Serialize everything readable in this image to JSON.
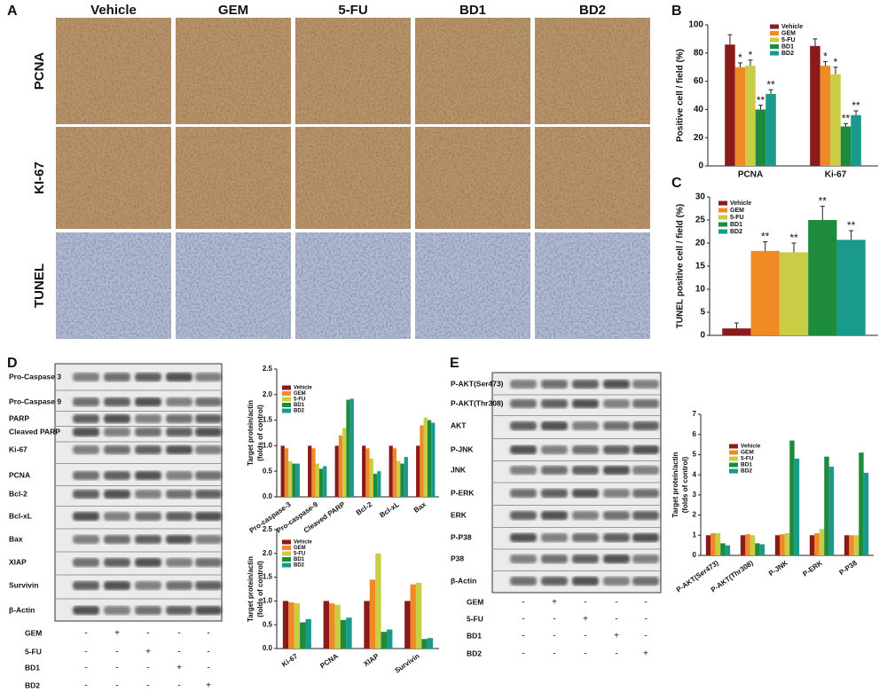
{
  "panel_labels": [
    "A",
    "B",
    "C",
    "D",
    "E"
  ],
  "panel_a": {
    "columns": [
      "Vehicle",
      "GEM",
      "5-FU",
      "BD1",
      "BD2"
    ],
    "rows": [
      "PCNA",
      "KI-67",
      "TUNEL"
    ]
  },
  "chart_data": [
    {
      "type": "bar",
      "ylabel": "Positive cell / field (%)",
      "categories": [
        "PCNA",
        "Ki-67"
      ],
      "ylim": [
        0,
        100
      ],
      "yticks": [
        0,
        20,
        40,
        60,
        80,
        100
      ],
      "series": [
        {
          "name": "Vehicle",
          "color": "#8b1a1a",
          "values": [
            86,
            85
          ],
          "errors": [
            7,
            5
          ]
        },
        {
          "name": "GEM",
          "color": "#f08a24",
          "values": [
            70,
            71
          ],
          "errors": [
            3,
            3
          ],
          "annotations": [
            "*",
            "*"
          ]
        },
        {
          "name": "5-FU",
          "color": "#c9cc44",
          "values": [
            71,
            65
          ],
          "errors": [
            4,
            5
          ],
          "annotations": [
            "*",
            "*"
          ]
        },
        {
          "name": "BD1",
          "color": "#1e8a3c",
          "values": [
            40,
            28
          ],
          "errors": [
            3,
            2
          ],
          "annotations": [
            "**",
            "**"
          ]
        },
        {
          "name": "BD2",
          "color": "#1a9a8c",
          "values": [
            51,
            36
          ],
          "errors": [
            3,
            3
          ],
          "annotations": [
            "**",
            "**"
          ]
        }
      ]
    },
    {
      "type": "bar",
      "ylabel": "TUNEL positive cell / field (%)",
      "categories": [
        null
      ],
      "ylim": [
        0,
        30
      ],
      "yticks": [
        0,
        5,
        10,
        15,
        20,
        25,
        30
      ],
      "series": [
        {
          "name": "Vehicle",
          "color": "#8b1a1a",
          "values": [
            1.5
          ],
          "errors": [
            1.2
          ]
        },
        {
          "name": "GEM",
          "color": "#f08a24",
          "values": [
            18.3
          ],
          "errors": [
            2
          ],
          "annotations": [
            "**"
          ]
        },
        {
          "name": "5-FU",
          "color": "#c9cc44",
          "values": [
            18
          ],
          "errors": [
            2
          ],
          "annotations": [
            "**"
          ]
        },
        {
          "name": "BD1",
          "color": "#1e8a3c",
          "values": [
            25
          ],
          "errors": [
            3
          ],
          "annotations": [
            "**"
          ]
        },
        {
          "name": "BD2",
          "color": "#1a9a8c",
          "values": [
            20.7
          ],
          "errors": [
            2
          ],
          "annotations": [
            "**"
          ]
        }
      ]
    },
    {
      "type": "bar",
      "ylabel": [
        "Target protein/actin",
        "(folds of control)"
      ],
      "categories": [
        "Pro-caspase-3",
        "Pro-caspase-9",
        "Cleaved PARP",
        "Bcl-2",
        "Bcl-xL",
        "Bax"
      ],
      "ylim": [
        0,
        2.5
      ],
      "yticks": [
        {
          "value": 0,
          "label": "0.0"
        },
        0.5,
        {
          "value": 1,
          "label": "1.0"
        },
        1.5,
        {
          "value": 2,
          "label": "2.0"
        },
        2.5
      ],
      "series": [
        {
          "name": "Vehicle",
          "color": "#8b1a1a",
          "values": [
            1,
            1,
            1,
            1,
            1,
            1
          ]
        },
        {
          "name": "GEM",
          "color": "#f08a24",
          "values": [
            0.95,
            0.95,
            1.2,
            0.95,
            0.95,
            1.4
          ]
        },
        {
          "name": "5-FU",
          "color": "#c9cc44",
          "values": [
            0.7,
            0.65,
            1.35,
            0.75,
            0.7,
            1.55
          ]
        },
        {
          "name": "BD1",
          "color": "#1e8a3c",
          "values": [
            0.65,
            0.55,
            1.9,
            0.45,
            0.65,
            1.5
          ]
        },
        {
          "name": "BD2",
          "color": "#1a9a8c",
          "values": [
            0.65,
            0.6,
            1.92,
            0.5,
            0.78,
            1.45
          ]
        }
      ]
    },
    {
      "type": "bar",
      "ylabel": [
        "Target protein/actin",
        "(folds of control)"
      ],
      "categories": [
        "Ki-67",
        "PCNA",
        "XIAP",
        "Survivin"
      ],
      "ylim": [
        0,
        2.5
      ],
      "yticks": [
        {
          "value": 0,
          "label": "0.0"
        },
        0.5,
        {
          "value": 1,
          "label": "1.0"
        },
        1.5,
        {
          "value": 2,
          "label": "2.0"
        },
        2.5
      ],
      "series": [
        {
          "name": "Vehicle",
          "color": "#8b1a1a",
          "values": [
            1,
            1,
            1,
            1
          ]
        },
        {
          "name": "GEM",
          "color": "#f08a24",
          "values": [
            0.97,
            0.95,
            1.45,
            1.35
          ]
        },
        {
          "name": "5-FU",
          "color": "#c9cc44",
          "values": [
            0.95,
            0.92,
            2.0,
            1.38
          ]
        },
        {
          "name": "BD1",
          "color": "#1e8a3c",
          "values": [
            0.55,
            0.6,
            0.35,
            0.2
          ]
        },
        {
          "name": "BD2",
          "color": "#1a9a8c",
          "values": [
            0.62,
            0.65,
            0.4,
            0.22
          ]
        }
      ]
    },
    {
      "type": "bar",
      "ylabel": [
        "Target protein/actin",
        "(folds of control)"
      ],
      "categories": [
        "P-AKT(Ser473)",
        "P-AKT(Thr308)",
        "P-JNK",
        "P-ERK",
        "P-P38"
      ],
      "ylim": [
        0,
        7
      ],
      "yticks": [
        0,
        1,
        2,
        3,
        4,
        5,
        6,
        7
      ],
      "series": [
        {
          "name": "Vehicle",
          "color": "#8b1a1a",
          "values": [
            1,
            1,
            1,
            1,
            1
          ]
        },
        {
          "name": "GEM",
          "color": "#f08a24",
          "values": [
            1.1,
            1.05,
            1.05,
            1.1,
            1.0
          ]
        },
        {
          "name": "5-FU",
          "color": "#c9cc44",
          "values": [
            1.1,
            1.0,
            1.1,
            1.3,
            1.0
          ]
        },
        {
          "name": "BD1",
          "color": "#1e8a3c",
          "values": [
            0.6,
            0.6,
            5.7,
            4.9,
            5.1
          ]
        },
        {
          "name": "BD2",
          "color": "#1a9a8c",
          "values": [
            0.5,
            0.55,
            4.8,
            4.4,
            4.1
          ]
        }
      ]
    }
  ],
  "blot_d": {
    "proteins": [
      "Pro-Caspase 3",
      "Pro-Caspase 9",
      "PARP",
      "Cleaved PARP",
      "Ki-67",
      "PCNA",
      "Bcl-2",
      "Bcl-xL",
      "Bax",
      "XIAP",
      "Survivin",
      "β-Actin"
    ],
    "treatments": [
      {
        "name": "GEM",
        "signs": [
          "-",
          "+",
          "-",
          "-",
          "-"
        ]
      },
      {
        "name": "5-FU",
        "signs": [
          "-",
          "-",
          "+",
          "-",
          "-"
        ]
      },
      {
        "name": "BD1",
        "signs": [
          "-",
          "-",
          "-",
          "+",
          "-"
        ]
      },
      {
        "name": "BD2",
        "signs": [
          "-",
          "-",
          "-",
          "-",
          "+"
        ]
      }
    ]
  },
  "blot_e": {
    "proteins": [
      "P-AKT(Ser473)",
      "P-AKT(Thr308)",
      "AKT",
      "P-JNK",
      "JNK",
      "P-ERK",
      "ERK",
      "P-P38",
      "P38",
      "β-Actin"
    ],
    "treatments": [
      {
        "name": "GEM",
        "signs": [
          "-",
          "+",
          "-",
          "-",
          "-"
        ]
      },
      {
        "name": "5-FU",
        "signs": [
          "-",
          "-",
          "+",
          "-",
          "-"
        ]
      },
      {
        "name": "BD1",
        "signs": [
          "-",
          "-",
          "-",
          "+",
          "-"
        ]
      },
      {
        "name": "BD2",
        "signs": [
          "-",
          "-",
          "-",
          "-",
          "+"
        ]
      }
    ]
  }
}
